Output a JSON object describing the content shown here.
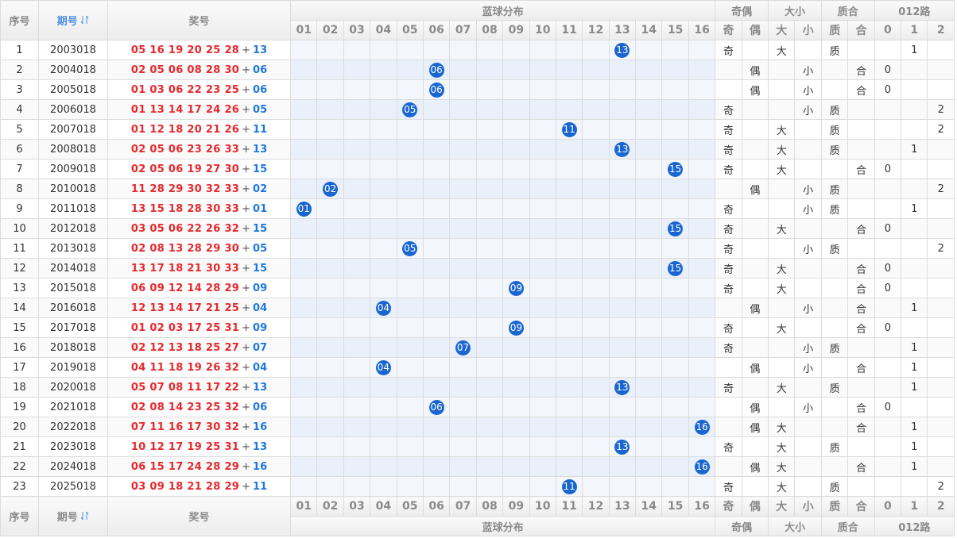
{
  "header": {
    "seq": "序号",
    "period": "期号",
    "prize": "奖号",
    "blue_group": "蓝球分布",
    "blue_cols": [
      "01",
      "02",
      "03",
      "04",
      "05",
      "06",
      "07",
      "08",
      "09",
      "10",
      "11",
      "12",
      "13",
      "14",
      "15",
      "16"
    ],
    "groups": [
      {
        "title": "奇偶",
        "cols": [
          "奇",
          "偶"
        ]
      },
      {
        "title": "大小",
        "cols": [
          "大",
          "小"
        ]
      },
      {
        "title": "质合",
        "cols": [
          "质",
          "合"
        ]
      },
      {
        "title": "012路",
        "cols": [
          "0",
          "1",
          "2"
        ]
      }
    ]
  },
  "plus": "+",
  "rows": [
    [
      "1",
      "2003018",
      "05 16 19 20 25 28",
      "13",
      "奇",
      "大",
      "质",
      "1"
    ],
    [
      "2",
      "2004018",
      "02 05 06 08 28 30",
      "06",
      "偶",
      "小",
      "合",
      "0"
    ],
    [
      "3",
      "2005018",
      "01 03 06 22 23 25",
      "06",
      "偶",
      "小",
      "合",
      "0"
    ],
    [
      "4",
      "2006018",
      "01 13 14 17 24 26",
      "05",
      "奇",
      "小",
      "质",
      "2"
    ],
    [
      "5",
      "2007018",
      "01 12 18 20 21 26",
      "11",
      "奇",
      "大",
      "质",
      "2"
    ],
    [
      "6",
      "2008018",
      "02 05 06 23 26 33",
      "13",
      "奇",
      "大",
      "质",
      "1"
    ],
    [
      "7",
      "2009018",
      "02 05 06 19 27 30",
      "15",
      "奇",
      "大",
      "合",
      "0"
    ],
    [
      "8",
      "2010018",
      "11 28 29 30 32 33",
      "02",
      "偶",
      "小",
      "质",
      "2"
    ],
    [
      "9",
      "2011018",
      "13 15 18 28 30 33",
      "01",
      "奇",
      "小",
      "质",
      "1"
    ],
    [
      "10",
      "2012018",
      "03 05 06 22 26 32",
      "15",
      "奇",
      "大",
      "合",
      "0"
    ],
    [
      "11",
      "2013018",
      "02 08 13 28 29 30",
      "05",
      "奇",
      "小",
      "质",
      "2"
    ],
    [
      "12",
      "2014018",
      "13 17 18 21 30 33",
      "15",
      "奇",
      "大",
      "合",
      "0"
    ],
    [
      "13",
      "2015018",
      "06 09 12 14 28 29",
      "09",
      "奇",
      "大",
      "合",
      "0"
    ],
    [
      "14",
      "2016018",
      "12 13 14 17 21 25",
      "04",
      "偶",
      "小",
      "合",
      "1"
    ],
    [
      "15",
      "2017018",
      "01 02 03 17 25 31",
      "09",
      "奇",
      "大",
      "合",
      "0"
    ],
    [
      "16",
      "2018018",
      "02 12 13 18 25 27",
      "07",
      "奇",
      "小",
      "质",
      "1"
    ],
    [
      "17",
      "2019018",
      "04 11 18 19 26 32",
      "04",
      "偶",
      "小",
      "合",
      "1"
    ],
    [
      "18",
      "2020018",
      "05 07 08 11 17 22",
      "13",
      "奇",
      "大",
      "质",
      "1"
    ],
    [
      "19",
      "2021018",
      "02 08 14 23 25 32",
      "06",
      "偶",
      "小",
      "合",
      "0"
    ],
    [
      "20",
      "2022018",
      "07 11 16 17 30 32",
      "16",
      "偶",
      "大",
      "合",
      "1"
    ],
    [
      "21",
      "2023018",
      "10 12 17 19 25 31",
      "13",
      "奇",
      "大",
      "质",
      "1"
    ],
    [
      "22",
      "2024018",
      "06 15 17 24 28 29",
      "16",
      "偶",
      "大",
      "合",
      "1"
    ],
    [
      "23",
      "2025018",
      "03 09 18 21 28 29",
      "11",
      "奇",
      "大",
      "质",
      "2"
    ]
  ]
}
